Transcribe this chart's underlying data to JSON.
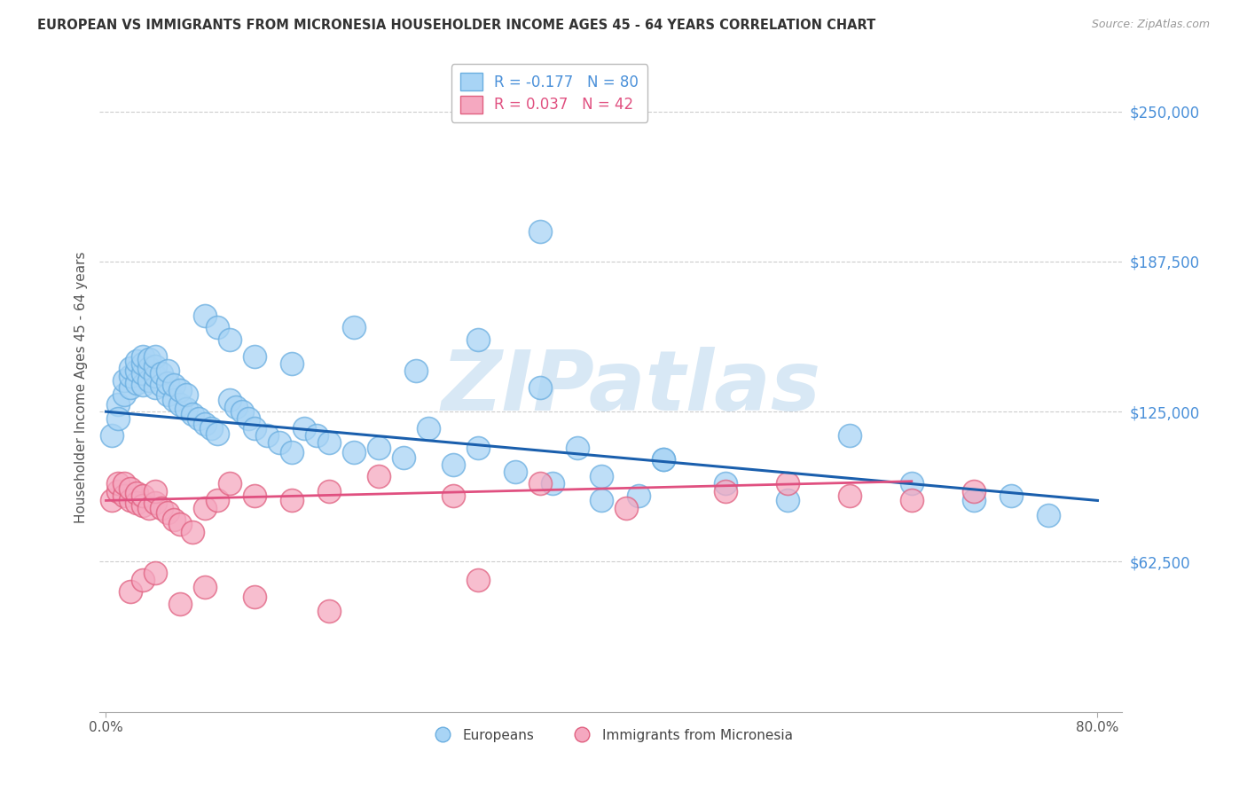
{
  "title": "EUROPEAN VS IMMIGRANTS FROM MICRONESIA HOUSEHOLDER INCOME AGES 45 - 64 YEARS CORRELATION CHART",
  "source": "Source: ZipAtlas.com",
  "ylabel": "Householder Income Ages 45 - 64 years",
  "ytick_labels": [
    "$62,500",
    "$125,000",
    "$187,500",
    "$250,000"
  ],
  "ytick_values": [
    62500,
    125000,
    187500,
    250000
  ],
  "ylim_min": 0,
  "ylim_max": 270000,
  "xlim_min": -0.005,
  "xlim_max": 0.82,
  "legend1_R": "-0.177",
  "legend1_N": "80",
  "legend2_R": "0.037",
  "legend2_N": "42",
  "eu_face": "#A8D4F5",
  "eu_edge": "#6AAEE0",
  "mic_face": "#F5A8C0",
  "mic_edge": "#E06080",
  "eu_trend_color": "#1A5FAD",
  "mic_trend_color": "#E05080",
  "watermark_color": "#D8E8F5",
  "grid_color": "#CCCCCC",
  "bg_color": "#FFFFFF",
  "title_color": "#333333",
  "source_color": "#999999",
  "axis_label_color": "#555555",
  "right_tick_color": "#4A90D9",
  "legend_text_color_eu": "#4A90D9",
  "legend_text_color_mic": "#E05080",
  "eu_x": [
    0.005,
    0.01,
    0.01,
    0.015,
    0.015,
    0.02,
    0.02,
    0.02,
    0.025,
    0.025,
    0.025,
    0.03,
    0.03,
    0.03,
    0.03,
    0.035,
    0.035,
    0.035,
    0.04,
    0.04,
    0.04,
    0.04,
    0.045,
    0.045,
    0.05,
    0.05,
    0.05,
    0.055,
    0.055,
    0.06,
    0.06,
    0.065,
    0.065,
    0.07,
    0.075,
    0.08,
    0.085,
    0.09,
    0.1,
    0.105,
    0.11,
    0.115,
    0.12,
    0.13,
    0.14,
    0.15,
    0.16,
    0.17,
    0.18,
    0.2,
    0.22,
    0.24,
    0.26,
    0.28,
    0.3,
    0.33,
    0.36,
    0.38,
    0.4,
    0.43,
    0.45,
    0.5,
    0.55,
    0.6,
    0.65,
    0.7,
    0.73,
    0.76,
    0.25,
    0.3,
    0.35,
    0.4,
    0.45,
    0.35,
    0.2,
    0.15,
    0.08,
    0.09,
    0.1,
    0.12
  ],
  "eu_y": [
    115000,
    128000,
    122000,
    132000,
    138000,
    135000,
    140000,
    143000,
    137000,
    142000,
    146000,
    136000,
    141000,
    145000,
    148000,
    138000,
    143000,
    147000,
    135000,
    140000,
    144000,
    148000,
    136000,
    141000,
    132000,
    137000,
    142000,
    130000,
    136000,
    128000,
    134000,
    126000,
    132000,
    124000,
    122000,
    120000,
    118000,
    116000,
    130000,
    127000,
    125000,
    122000,
    118000,
    115000,
    112000,
    108000,
    118000,
    115000,
    112000,
    108000,
    110000,
    106000,
    118000,
    103000,
    110000,
    100000,
    95000,
    110000,
    88000,
    90000,
    105000,
    95000,
    88000,
    115000,
    95000,
    88000,
    90000,
    82000,
    142000,
    155000,
    135000,
    98000,
    105000,
    200000,
    160000,
    145000,
    165000,
    160000,
    155000,
    148000
  ],
  "mic_x": [
    0.005,
    0.01,
    0.01,
    0.015,
    0.015,
    0.02,
    0.02,
    0.025,
    0.025,
    0.03,
    0.03,
    0.035,
    0.04,
    0.04,
    0.045,
    0.05,
    0.055,
    0.06,
    0.07,
    0.08,
    0.09,
    0.1,
    0.12,
    0.15,
    0.18,
    0.22,
    0.28,
    0.35,
    0.42,
    0.5,
    0.55,
    0.6,
    0.65,
    0.7,
    0.02,
    0.03,
    0.04,
    0.06,
    0.08,
    0.12,
    0.18,
    0.3
  ],
  "mic_y": [
    88000,
    92000,
    95000,
    90000,
    95000,
    88000,
    93000,
    87000,
    91000,
    86000,
    90000,
    85000,
    87000,
    92000,
    85000,
    83000,
    80000,
    78000,
    75000,
    85000,
    88000,
    95000,
    90000,
    88000,
    92000,
    98000,
    90000,
    95000,
    85000,
    92000,
    95000,
    90000,
    88000,
    92000,
    50000,
    55000,
    58000,
    45000,
    52000,
    48000,
    42000,
    55000
  ]
}
